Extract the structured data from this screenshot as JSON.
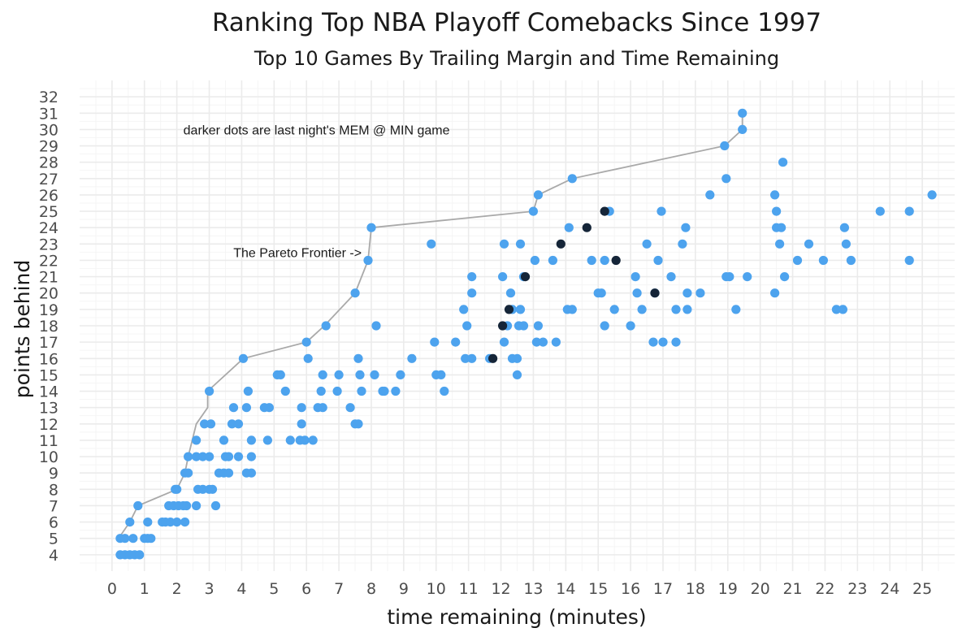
{
  "chart_data": {
    "type": "scatter",
    "title": "Ranking Top NBA Playoff Comebacks Since 1997",
    "subtitle": "Top 10 Games By Trailing Margin and Time Remaining",
    "xlabel": "time remaining (minutes)",
    "ylabel": "points behind",
    "xlim": [
      -1,
      26
    ],
    "ylim": [
      3,
      33
    ],
    "x_ticks": [
      0,
      1,
      2,
      3,
      4,
      5,
      6,
      7,
      8,
      9,
      10,
      11,
      12,
      13,
      14,
      15,
      16,
      17,
      18,
      19,
      20,
      21,
      22,
      23,
      24,
      25
    ],
    "y_ticks": [
      4,
      5,
      6,
      7,
      8,
      9,
      10,
      11,
      12,
      13,
      14,
      15,
      16,
      17,
      18,
      19,
      20,
      21,
      22,
      23,
      24,
      25,
      26,
      27,
      28,
      29,
      30,
      31,
      32
    ],
    "grid": true,
    "colors": {
      "games": "#4da3ee",
      "highlight": "#152538",
      "frontier": "#a9a9a9"
    },
    "annotations": [
      {
        "text": "darker dots are last night's MEM @ MIN game",
        "x": 2.2,
        "y": 30
      },
      {
        "text": "The Pareto Frontier ->",
        "x": 7.7,
        "y": 22.5
      }
    ],
    "frontier": [
      [
        0.2,
        5
      ],
      [
        0.55,
        6
      ],
      [
        0.8,
        7
      ],
      [
        2.0,
        8
      ],
      [
        2.25,
        9
      ],
      [
        2.35,
        10
      ],
      [
        2.6,
        12
      ],
      [
        2.95,
        13
      ],
      [
        2.95,
        14
      ],
      [
        4.05,
        16
      ],
      [
        6.0,
        17
      ],
      [
        6.55,
        18
      ],
      [
        7.5,
        20
      ],
      [
        7.9,
        22
      ],
      [
        8.0,
        24
      ],
      [
        13.0,
        25
      ],
      [
        13.15,
        26
      ],
      [
        14.2,
        27
      ],
      [
        18.9,
        29
      ],
      [
        19.45,
        30
      ],
      [
        19.45,
        31
      ]
    ],
    "series": [
      {
        "name": "",
        "points": [
          [
            0.25,
            4
          ],
          [
            0.4,
            4
          ],
          [
            0.55,
            4
          ],
          [
            0.7,
            4
          ],
          [
            0.85,
            4
          ],
          [
            0.25,
            5
          ],
          [
            0.4,
            5
          ],
          [
            0.65,
            5
          ],
          [
            1.0,
            5
          ],
          [
            1.1,
            5
          ],
          [
            1.2,
            5
          ],
          [
            0.55,
            6
          ],
          [
            1.1,
            6
          ],
          [
            1.55,
            6
          ],
          [
            1.65,
            6
          ],
          [
            1.8,
            6
          ],
          [
            2.0,
            6
          ],
          [
            2.25,
            6
          ],
          [
            0.8,
            7
          ],
          [
            1.75,
            7
          ],
          [
            1.9,
            7
          ],
          [
            2.05,
            7
          ],
          [
            2.2,
            7
          ],
          [
            2.3,
            7
          ],
          [
            2.6,
            7
          ],
          [
            3.2,
            7
          ],
          [
            1.95,
            8
          ],
          [
            2.0,
            8
          ],
          [
            2.65,
            8
          ],
          [
            2.8,
            8
          ],
          [
            3.0,
            8
          ],
          [
            3.1,
            8
          ],
          [
            2.25,
            9
          ],
          [
            2.35,
            9
          ],
          [
            3.3,
            9
          ],
          [
            3.45,
            9
          ],
          [
            3.6,
            9
          ],
          [
            4.15,
            9
          ],
          [
            4.3,
            9
          ],
          [
            2.35,
            10
          ],
          [
            2.6,
            10
          ],
          [
            2.8,
            10
          ],
          [
            3.0,
            10
          ],
          [
            3.5,
            10
          ],
          [
            3.6,
            10
          ],
          [
            3.9,
            10
          ],
          [
            4.3,
            10
          ],
          [
            2.6,
            11
          ],
          [
            3.45,
            11
          ],
          [
            4.3,
            11
          ],
          [
            4.8,
            11
          ],
          [
            5.5,
            11
          ],
          [
            5.8,
            11
          ],
          [
            5.95,
            11
          ],
          [
            6.2,
            11
          ],
          [
            2.85,
            12
          ],
          [
            3.05,
            12
          ],
          [
            3.7,
            12
          ],
          [
            3.9,
            12
          ],
          [
            5.85,
            12
          ],
          [
            7.5,
            12
          ],
          [
            7.6,
            12
          ],
          [
            3.75,
            13
          ],
          [
            4.15,
            13
          ],
          [
            4.7,
            13
          ],
          [
            4.85,
            13
          ],
          [
            5.85,
            13
          ],
          [
            6.35,
            13
          ],
          [
            6.5,
            13
          ],
          [
            7.35,
            13
          ],
          [
            3.0,
            14
          ],
          [
            4.2,
            14
          ],
          [
            5.35,
            14
          ],
          [
            6.45,
            14
          ],
          [
            6.95,
            14
          ],
          [
            7.7,
            14
          ],
          [
            8.35,
            14
          ],
          [
            8.4,
            14
          ],
          [
            8.75,
            14
          ],
          [
            10.25,
            14
          ],
          [
            5.1,
            15
          ],
          [
            5.2,
            15
          ],
          [
            6.5,
            15
          ],
          [
            7.0,
            15
          ],
          [
            7.65,
            15
          ],
          [
            8.1,
            15
          ],
          [
            8.9,
            15
          ],
          [
            10.0,
            15
          ],
          [
            10.15,
            15
          ],
          [
            12.5,
            15
          ],
          [
            4.05,
            16
          ],
          [
            6.05,
            16
          ],
          [
            7.6,
            16
          ],
          [
            9.25,
            16
          ],
          [
            10.9,
            16
          ],
          [
            11.1,
            16
          ],
          [
            11.65,
            16
          ],
          [
            12.35,
            16
          ],
          [
            12.5,
            16
          ],
          [
            6.0,
            17
          ],
          [
            9.95,
            17
          ],
          [
            10.6,
            17
          ],
          [
            12.1,
            17
          ],
          [
            13.1,
            17
          ],
          [
            13.3,
            17
          ],
          [
            13.7,
            17
          ],
          [
            16.7,
            17
          ],
          [
            17.0,
            17
          ],
          [
            17.4,
            17
          ],
          [
            6.6,
            18
          ],
          [
            8.15,
            18
          ],
          [
            10.95,
            18
          ],
          [
            12.2,
            18
          ],
          [
            12.55,
            18
          ],
          [
            12.7,
            18
          ],
          [
            13.15,
            18
          ],
          [
            15.2,
            18
          ],
          [
            16.0,
            18
          ],
          [
            10.85,
            19
          ],
          [
            12.35,
            19
          ],
          [
            12.6,
            19
          ],
          [
            14.05,
            19
          ],
          [
            14.2,
            19
          ],
          [
            15.5,
            19
          ],
          [
            16.35,
            19
          ],
          [
            17.4,
            19
          ],
          [
            17.75,
            19
          ],
          [
            19.25,
            19
          ],
          [
            22.35,
            19
          ],
          [
            22.55,
            19
          ],
          [
            7.5,
            20
          ],
          [
            11.1,
            20
          ],
          [
            12.3,
            20
          ],
          [
            15.0,
            20
          ],
          [
            15.1,
            20
          ],
          [
            16.2,
            20
          ],
          [
            16.75,
            20
          ],
          [
            17.75,
            20
          ],
          [
            18.15,
            20
          ],
          [
            20.45,
            20
          ],
          [
            11.1,
            21
          ],
          [
            12.05,
            21
          ],
          [
            12.7,
            21
          ],
          [
            16.15,
            21
          ],
          [
            17.25,
            21
          ],
          [
            18.95,
            21
          ],
          [
            19.05,
            21
          ],
          [
            19.6,
            21
          ],
          [
            20.75,
            21
          ],
          [
            7.9,
            22
          ],
          [
            13.05,
            22
          ],
          [
            13.6,
            22
          ],
          [
            14.8,
            22
          ],
          [
            15.2,
            22
          ],
          [
            16.85,
            22
          ],
          [
            21.15,
            22
          ],
          [
            21.95,
            22
          ],
          [
            22.8,
            22
          ],
          [
            24.6,
            22
          ],
          [
            9.85,
            23
          ],
          [
            12.1,
            23
          ],
          [
            12.6,
            23
          ],
          [
            16.5,
            23
          ],
          [
            17.6,
            23
          ],
          [
            20.6,
            23
          ],
          [
            21.5,
            23
          ],
          [
            22.65,
            23
          ],
          [
            8.0,
            24
          ],
          [
            14.1,
            24
          ],
          [
            17.7,
            24
          ],
          [
            20.5,
            24
          ],
          [
            20.65,
            24
          ],
          [
            22.6,
            24
          ],
          [
            13.0,
            25
          ],
          [
            15.35,
            25
          ],
          [
            16.95,
            25
          ],
          [
            20.5,
            25
          ],
          [
            23.7,
            25
          ],
          [
            24.6,
            25
          ],
          [
            13.15,
            26
          ],
          [
            18.45,
            26
          ],
          [
            20.45,
            26
          ],
          [
            25.3,
            26
          ],
          [
            14.2,
            27
          ],
          [
            18.95,
            27
          ],
          [
            20.7,
            28
          ],
          [
            18.9,
            29
          ],
          [
            19.45,
            30
          ],
          [
            19.45,
            31
          ]
        ]
      },
      {
        "name": "",
        "points": [
          [
            11.75,
            16
          ],
          [
            12.05,
            18
          ],
          [
            12.25,
            19
          ],
          [
            16.75,
            20
          ],
          [
            12.75,
            21
          ],
          [
            15.55,
            22
          ],
          [
            13.85,
            23
          ],
          [
            14.65,
            24
          ],
          [
            15.2,
            25
          ]
        ]
      }
    ]
  }
}
